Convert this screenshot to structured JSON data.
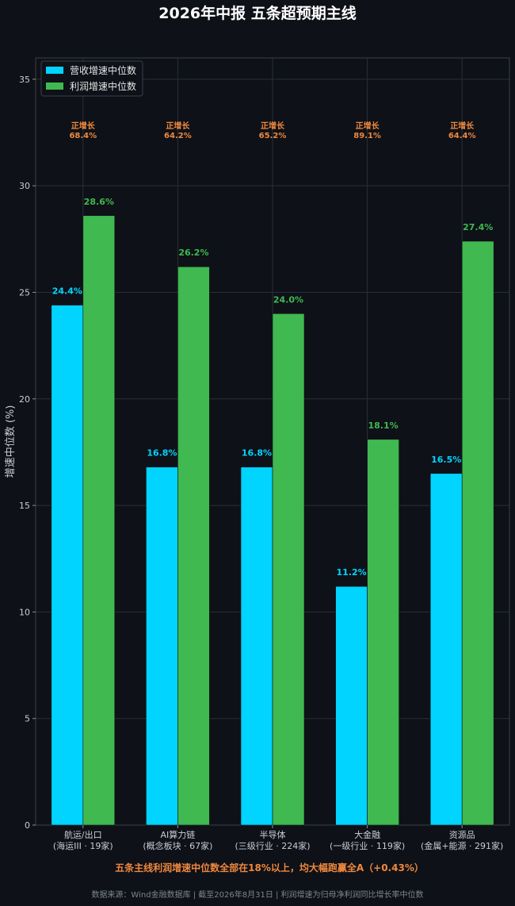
{
  "chart_data": {
    "type": "bar",
    "title": "2026年中报 五条超预期主线",
    "ylabel": "增速中位数 (%)",
    "ylim": [
      0,
      36
    ],
    "yticks": [
      0,
      5,
      10,
      15,
      20,
      25,
      30,
      35
    ],
    "grid": true,
    "legend_position": "top-left",
    "categories": [
      [
        "航运/出口",
        "(海运III · 19家)"
      ],
      [
        "AI算力链",
        "(概念板块 · 67家)"
      ],
      [
        "半导体",
        "(三级行业 · 224家)"
      ],
      [
        "大金融",
        "(一级行业 · 119家)"
      ],
      [
        "资源品",
        "(金属+能源 · 291家)"
      ]
    ],
    "series": [
      {
        "name": "营收增速中位数",
        "color": "#00d4ff",
        "values": [
          24.4,
          16.8,
          16.8,
          11.2,
          16.5
        ],
        "labels": [
          "24.4%",
          "16.8%",
          "16.8%",
          "11.2%",
          "16.5%"
        ]
      },
      {
        "name": "利润增速中位数",
        "color": "#3fb950",
        "values": [
          28.6,
          26.2,
          24.0,
          18.1,
          27.4
        ],
        "labels": [
          "28.6%",
          "26.2%",
          "24.0%",
          "18.1%",
          "27.4%"
        ]
      }
    ],
    "annotations": {
      "label": "正增长",
      "values": [
        "68.4%",
        "64.2%",
        "65.2%",
        "89.1%",
        "64.4%"
      ],
      "color": "#f0883e"
    },
    "summary": "五条主线利润增速中位数全部在18%以上，均大幅跑赢全A（+0.43%）",
    "source": "数据来源：Wind金融数据库 | 截至2026年8月31日 | 利润增速为归母净利润同比增长率中位数"
  },
  "colors": {
    "background": "#0e1117",
    "grid": "#2a2f38",
    "text": "#c9cdd4",
    "accent": "#f0883e"
  }
}
